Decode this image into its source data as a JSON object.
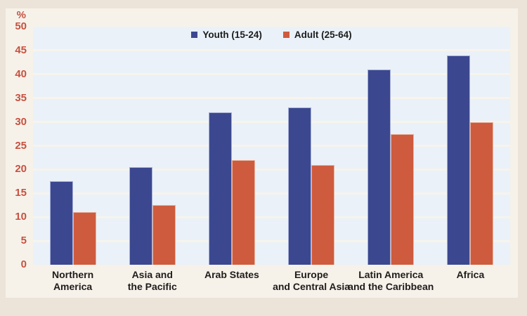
{
  "chart_data": {
    "type": "bar",
    "title": "",
    "ylabel": "%",
    "xlabel": "",
    "ylim": [
      0,
      50
    ],
    "yticks": [
      0,
      5,
      10,
      15,
      20,
      25,
      30,
      35,
      40,
      45,
      50
    ],
    "grid": true,
    "legend_position": "top-center",
    "categories": [
      {
        "label": "Northern America",
        "lines": [
          "Northern",
          "America"
        ]
      },
      {
        "label": "Asia and the Pacific",
        "lines": [
          "Asia and",
          "the Pacific"
        ]
      },
      {
        "label": "Arab States",
        "lines": [
          "Arab States"
        ]
      },
      {
        "label": "Europe and Central Asia",
        "lines": [
          "Europe",
          "and Central Asia"
        ]
      },
      {
        "label": "Latin America and the Caribbean",
        "lines": [
          "Latin America",
          "and the Caribbean"
        ]
      },
      {
        "label": "Africa",
        "lines": [
          "Africa"
        ]
      }
    ],
    "series": [
      {
        "name": "Youth (15-24)",
        "color": "#3b4890",
        "values": [
          17.5,
          20.5,
          32,
          33,
          41,
          44
        ]
      },
      {
        "name": "Adult (25-64)",
        "color": "#ce5b3d",
        "values": [
          11,
          12.5,
          22,
          21,
          27.5,
          30
        ]
      }
    ],
    "colors": {
      "axis_tick_label": "#c75140",
      "plot_background": "#eaf1f8",
      "panel_background": "#f6f2ea",
      "outer_background": "#ece4d9",
      "gridline": "#f7f4ec",
      "x_label_text": "#1f1c1a"
    }
  }
}
